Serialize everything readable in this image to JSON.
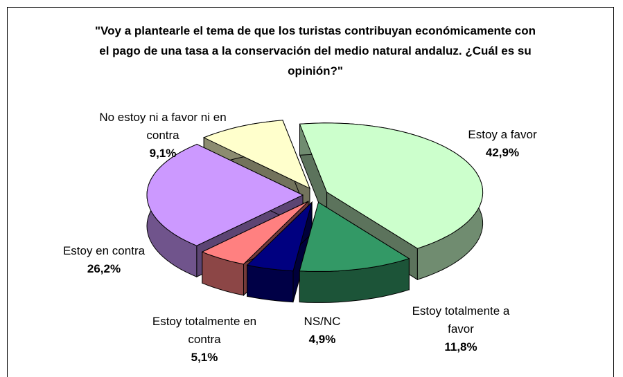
{
  "chart_data": {
    "type": "pie",
    "title": "\"Voy a plantearle el tema de que los turistas contribuyan económicamente con el pago de una tasa a la conservación del medio natural andaluz. ¿Cuál es su opinión?\"",
    "categories": [
      "Estoy a favor",
      "Estoy totalmente a favor",
      "NS/NC",
      "Estoy totalmente en contra",
      "Estoy en contra",
      "No estoy ni a favor ni en contra"
    ],
    "values": [
      42.9,
      11.8,
      4.9,
      5.1,
      26.2,
      9.1
    ],
    "value_labels": [
      "42,9%",
      "11,8%",
      "4,9%",
      "5,1%",
      "26,2%",
      "9,1%"
    ],
    "colors": [
      "#ccffcc",
      "#339966",
      "#000080",
      "#ff8080",
      "#cc99ff",
      "#ffffcc"
    ]
  }
}
